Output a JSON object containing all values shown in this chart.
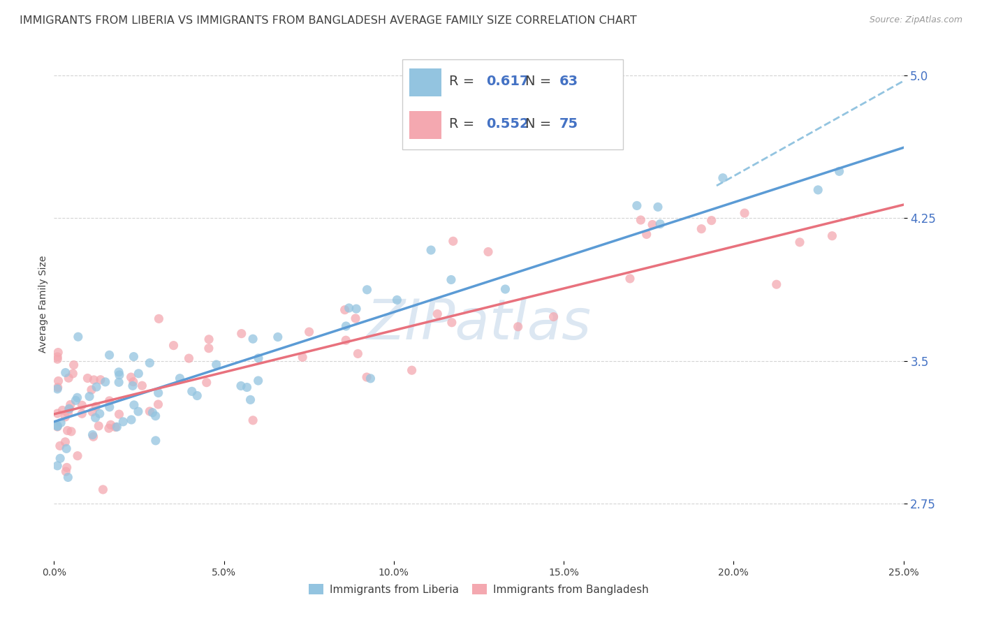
{
  "title": "IMMIGRANTS FROM LIBERIA VS IMMIGRANTS FROM BANGLADESH AVERAGE FAMILY SIZE CORRELATION CHART",
  "source": "Source: ZipAtlas.com",
  "ylabel": "Average Family Size",
  "yticks": [
    2.75,
    3.5,
    4.25,
    5.0
  ],
  "xtick_vals": [
    0.0,
    0.05,
    0.1,
    0.15,
    0.2,
    0.25
  ],
  "xtick_labels": [
    "0.0%",
    "5.0%",
    "10.0%",
    "15.0%",
    "20.0%",
    "25.0%"
  ],
  "xlim": [
    0.0,
    0.25
  ],
  "ylim": [
    2.45,
    5.15
  ],
  "R_liberia": "0.617",
  "N_liberia": "63",
  "R_bangladesh": "0.552",
  "N_bangladesh": "75",
  "color_liberia": "#93c4e0",
  "color_bangladesh": "#f4a8b0",
  "line_color_liberia": "#5b9bd5",
  "line_color_bangladesh": "#e8717d",
  "line_color_dashed": "#93c4e0",
  "text_color_blue": "#4472c4",
  "text_color_dark": "#404040",
  "text_color_source": "#999999",
  "background_color": "#ffffff",
  "grid_color": "#d0d0d0",
  "title_fontsize": 11.5,
  "source_fontsize": 9,
  "axis_label_fontsize": 10,
  "ytick_fontsize": 12,
  "xtick_fontsize": 10,
  "legend_fontsize": 14,
  "trend_liberia": [
    0.0,
    3.18,
    0.25,
    4.62
  ],
  "trend_bangladesh": [
    0.0,
    3.22,
    0.25,
    4.32
  ],
  "dashed_line": [
    0.195,
    4.42,
    0.25,
    4.97
  ],
  "watermark": "ZIPatlas",
  "watermark_color": "#c5d8ea",
  "bottom_legend_label1": "Immigrants from Liberia",
  "bottom_legend_label2": "Immigrants from Bangladesh"
}
